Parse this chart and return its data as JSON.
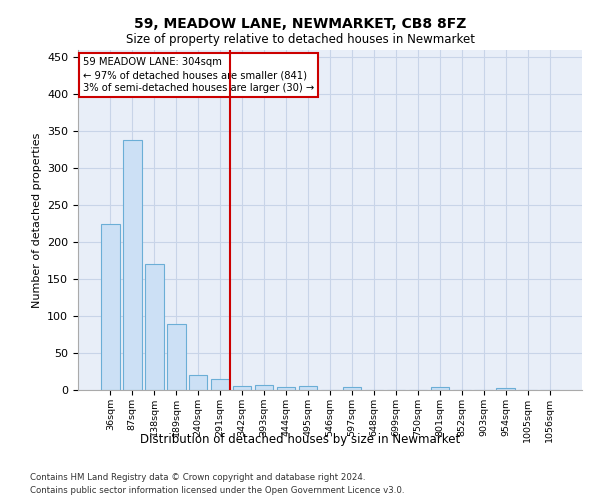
{
  "title1": "59, MEADOW LANE, NEWMARKET, CB8 8FZ",
  "title2": "Size of property relative to detached houses in Newmarket",
  "xlabel": "Distribution of detached houses by size in Newmarket",
  "ylabel": "Number of detached properties",
  "bar_labels": [
    "36sqm",
    "87sqm",
    "138sqm",
    "189sqm",
    "240sqm",
    "291sqm",
    "342sqm",
    "393sqm",
    "444sqm",
    "495sqm",
    "546sqm",
    "597sqm",
    "648sqm",
    "699sqm",
    "750sqm",
    "801sqm",
    "852sqm",
    "903sqm",
    "954sqm",
    "1005sqm",
    "1056sqm"
  ],
  "bar_values": [
    225,
    338,
    170,
    89,
    20,
    15,
    6,
    7,
    4,
    5,
    0,
    4,
    0,
    0,
    0,
    4,
    0,
    0,
    3,
    0,
    0
  ],
  "bar_color": "#cce0f5",
  "bar_edge_color": "#6baed6",
  "grid_color": "#c8d4e8",
  "background_color": "#e8eef8",
  "vline_x": 5.45,
  "vline_color": "#cc0000",
  "annotation_text": "59 MEADOW LANE: 304sqm\n← 97% of detached houses are smaller (841)\n3% of semi-detached houses are larger (30) →",
  "annotation_box_color": "#cc0000",
  "ylim": [
    0,
    460
  ],
  "yticks": [
    0,
    50,
    100,
    150,
    200,
    250,
    300,
    350,
    400,
    450
  ],
  "footnote1": "Contains HM Land Registry data © Crown copyright and database right 2024.",
  "footnote2": "Contains public sector information licensed under the Open Government Licence v3.0."
}
